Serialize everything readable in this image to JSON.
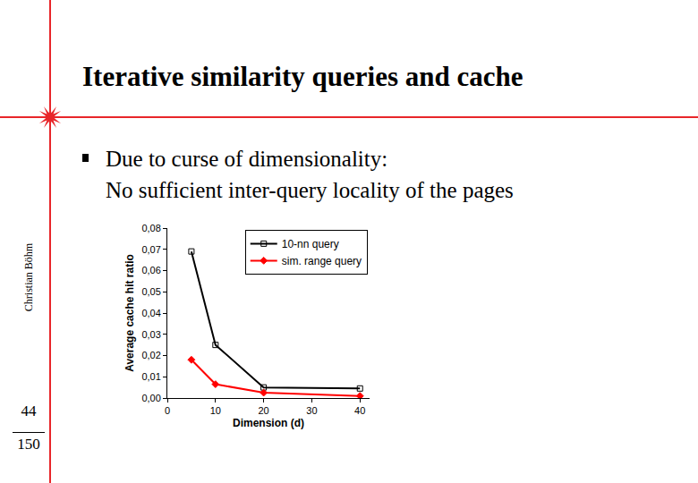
{
  "slide": {
    "title": "Iterative similarity queries and cache",
    "bullet": [
      "Due to curse of dimensionality:",
      "No sufficient inter-query locality of the pages"
    ],
    "author": "Christian Böhm",
    "page": "44",
    "total": "150"
  },
  "chart_data": {
    "type": "line",
    "x_label": "Dimension (d)",
    "y_label": "Average cache hit ratio",
    "series": [
      {
        "name": "10-nn query",
        "color": "#000000",
        "marker": "square-open",
        "x": [
          5,
          10,
          20,
          40
        ],
        "values": [
          0.069,
          0.025,
          0.005,
          0.0045
        ]
      },
      {
        "name": "sim. range query",
        "color": "#ff0000",
        "marker": "diamond",
        "x": [
          5,
          10,
          20,
          40
        ],
        "values": [
          0.018,
          0.0065,
          0.0025,
          0.001
        ]
      }
    ],
    "xlim": [
      0,
      42
    ],
    "xticks": [
      0,
      10,
      20,
      30,
      40
    ],
    "ylim": [
      0,
      0.08
    ],
    "yticks": [
      {
        "value": 0,
        "label": "0,00"
      },
      {
        "value": 0.01,
        "label": "0,01"
      },
      {
        "value": 0.02,
        "label": "0,02"
      },
      {
        "value": 0.03,
        "label": "0,03"
      },
      {
        "value": 0.04,
        "label": "0,04"
      },
      {
        "value": 0.05,
        "label": "0,05"
      },
      {
        "value": 0.06,
        "label": "0,06"
      },
      {
        "value": 0.07,
        "label": "0,07"
      },
      {
        "value": 0.08,
        "label": "0,08"
      }
    ],
    "grid": false,
    "legend": "top right"
  }
}
